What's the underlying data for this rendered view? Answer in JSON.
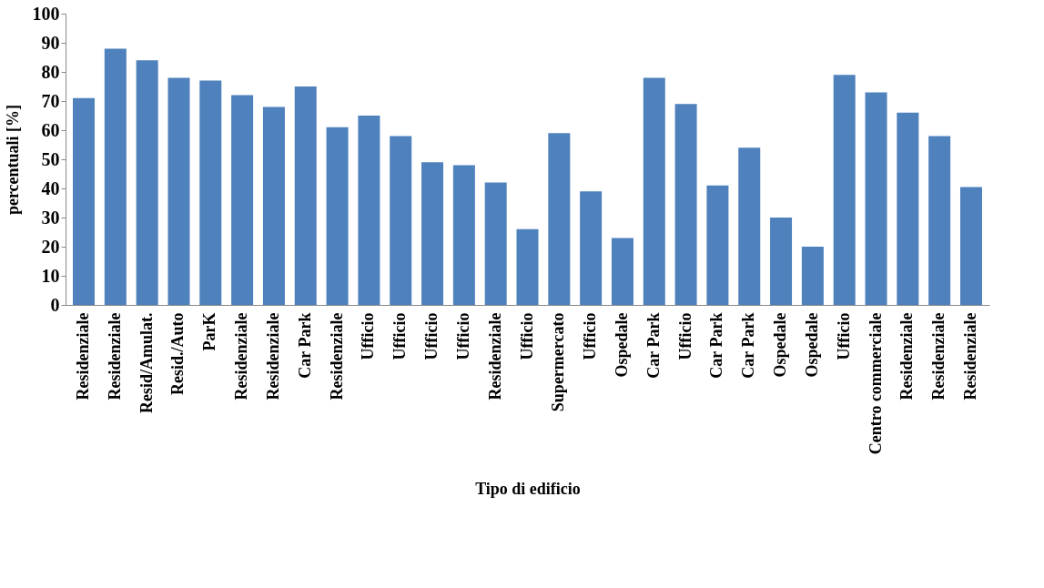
{
  "chart_data": {
    "type": "bar",
    "xlabel": "Tipo di edificio",
    "ylabel": "percentuali  [%]",
    "categories": [
      "Residenziale",
      "Residenziale",
      "Resid/Amulat.",
      "Resid./Auto",
      "ParK",
      "Residenziale",
      "Residenziale",
      "Car Park",
      "Residenziale",
      "Ufficio",
      "Ufficio",
      "Ufficio",
      "Ufficio",
      "Residenziale",
      "Ufficio",
      "Supermercato",
      "Ufficio",
      "Ospedale",
      "Car Park",
      "Ufficio",
      "Car Park",
      "Car Park",
      "Ospedale",
      "Ospedale",
      "Ufficio",
      "Centro commerciale",
      "Residenziale",
      "Residenziale",
      "Residenziale"
    ],
    "values": [
      71,
      88,
      84,
      78,
      77,
      72,
      68,
      75,
      61,
      65,
      58,
      49,
      48,
      42,
      26,
      59,
      39,
      23,
      78,
      69,
      41,
      54,
      30,
      20,
      79,
      73,
      66,
      58,
      40.5
    ],
    "color": "#4f81bd",
    "ylim": [
      0,
      100
    ],
    "yticks": [
      0,
      10,
      20,
      30,
      40,
      50,
      60,
      70,
      80,
      90,
      100
    ],
    "grid": false
  }
}
